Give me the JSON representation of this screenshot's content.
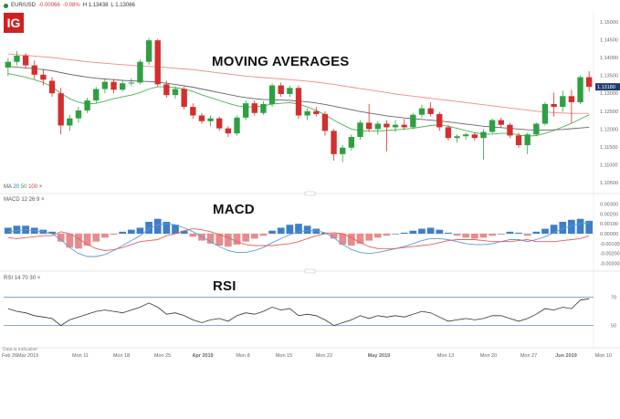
{
  "header": {
    "symbol": "EUR/USD",
    "change": "-0.00066",
    "change_pct": "-0.08%",
    "high": "H 1.13438",
    "low": "L 1.13066"
  },
  "logo_text": "IG",
  "titles": {
    "ma": "MOVING AVERAGES",
    "macd": "MACD",
    "rsi": "RSI"
  },
  "panels": {
    "ma": {
      "name": "MA",
      "p1": "20",
      "p2": "50",
      "p3": "100",
      "close": "×"
    },
    "macd": {
      "name": "MACD",
      "params": "12  26  9",
      "close": "×"
    },
    "rsi": {
      "name": "RSI",
      "params": "14  70  30",
      "close": "×"
    }
  },
  "last_price_tag": "1.13180",
  "footer_note": "Data is indicative",
  "colors": {
    "up": "#2ea043",
    "down": "#d32f2f",
    "ma20": "#4caf50",
    "ma50": "#666666",
    "ma100": "#ef8a8a",
    "macd_pos": "#3d7fc7",
    "macd_neg": "#e88b8b",
    "macd_line": "#5b9bd5",
    "signal_line": "#e06060",
    "rsi_line": "#333333",
    "band": "#4a78c2"
  },
  "chart_data": [
    {
      "type": "candlestick",
      "title": "MOVING AVERAGES",
      "yticks": [
        "1.15000",
        "1.14500",
        "1.14000",
        "1.13500",
        "1.13000",
        "1.12500",
        "1.12000",
        "1.11500",
        "1.11000",
        "1.10500"
      ],
      "ylim": [
        1.1025,
        1.1525
      ],
      "xticks": [
        "Feb 26",
        "Mar 2019",
        "Mon 11",
        "Mon 18",
        "Mon 25",
        "Apr 2019",
        "Mon 8",
        "Mon 15",
        "Mon 22",
        "May 2019",
        "Mon 13",
        "Mon 20",
        "Mon 27",
        "Jun 2019",
        "Mon 10"
      ],
      "candles": [
        [
          1.1372,
          1.1398,
          1.1348,
          1.1388
        ],
        [
          1.1388,
          1.1418,
          1.1378,
          1.1405
        ],
        [
          1.1405,
          1.1412,
          1.1372,
          1.1378
        ],
        [
          1.1378,
          1.1392,
          1.134,
          1.1352
        ],
        [
          1.1352,
          1.1368,
          1.1322,
          1.1338
        ],
        [
          1.1335,
          1.1345,
          1.129,
          1.13
        ],
        [
          1.13,
          1.1315,
          1.1185,
          1.121
        ],
        [
          1.121,
          1.124,
          1.1195,
          1.123
        ],
        [
          1.123,
          1.1262,
          1.1218,
          1.1252
        ],
        [
          1.1252,
          1.1288,
          1.1245,
          1.128
        ],
        [
          1.128,
          1.1318,
          1.1272,
          1.1312
        ],
        [
          1.1312,
          1.1342,
          1.13,
          1.1332
        ],
        [
          1.1332,
          1.134,
          1.13,
          1.131
        ],
        [
          1.131,
          1.1338,
          1.1305,
          1.1328
        ],
        [
          1.1328,
          1.1342,
          1.132,
          1.133
        ],
        [
          1.133,
          1.1395,
          1.1325,
          1.1388
        ],
        [
          1.1388,
          1.1455,
          1.138,
          1.1448
        ],
        [
          1.1448,
          1.1452,
          1.1318,
          1.1325
        ],
        [
          1.1325,
          1.1335,
          1.1288,
          1.1295
        ],
        [
          1.1295,
          1.132,
          1.1285,
          1.1312
        ],
        [
          1.1312,
          1.1318,
          1.1255,
          1.1262
        ],
        [
          1.1262,
          1.1272,
          1.1228,
          1.1238
        ],
        [
          1.1238,
          1.1245,
          1.1215,
          1.1222
        ],
        [
          1.1222,
          1.1238,
          1.1208,
          1.123
        ],
        [
          1.123,
          1.1235,
          1.1195,
          1.1202
        ],
        [
          1.1202,
          1.1208,
          1.1178,
          1.1188
        ],
        [
          1.1188,
          1.1238,
          1.1182,
          1.1232
        ],
        [
          1.1232,
          1.128,
          1.1225,
          1.1272
        ],
        [
          1.1272,
          1.128,
          1.1238,
          1.1245
        ],
        [
          1.1245,
          1.1278,
          1.124,
          1.127
        ],
        [
          1.127,
          1.1328,
          1.1262,
          1.1322
        ],
        [
          1.1322,
          1.133,
          1.129,
          1.1298
        ],
        [
          1.1298,
          1.1322,
          1.129,
          1.1315
        ],
        [
          1.1315,
          1.1322,
          1.1228,
          1.1238
        ],
        [
          1.1238,
          1.1258,
          1.1225,
          1.125
        ],
        [
          1.125,
          1.1262,
          1.1235,
          1.1242
        ],
        [
          1.1242,
          1.125,
          1.1182,
          1.1195
        ],
        [
          1.1195,
          1.12,
          1.1112,
          1.113
        ],
        [
          1.113,
          1.1155,
          1.1108,
          1.1148
        ],
        [
          1.1148,
          1.1185,
          1.114,
          1.1178
        ],
        [
          1.1178,
          1.1225,
          1.117,
          1.1218
        ],
        [
          1.1218,
          1.127,
          1.1192,
          1.12
        ],
        [
          1.12,
          1.1222,
          1.1185,
          1.1215
        ],
        [
          1.1215,
          1.1225,
          1.1138,
          1.1205
        ],
        [
          1.1205,
          1.1225,
          1.1192,
          1.1212
        ],
        [
          1.1212,
          1.1228,
          1.1198,
          1.1205
        ],
        [
          1.1205,
          1.1245,
          1.12,
          1.124
        ],
        [
          1.124,
          1.1268,
          1.1232,
          1.1258
        ],
        [
          1.1258,
          1.1275,
          1.1235,
          1.1242
        ],
        [
          1.1242,
          1.1248,
          1.1195,
          1.1205
        ],
        [
          1.1205,
          1.1212,
          1.1168,
          1.1175
        ],
        [
          1.1175,
          1.1185,
          1.1162,
          1.118
        ],
        [
          1.118,
          1.119,
          1.117,
          1.1185
        ],
        [
          1.1185,
          1.119,
          1.1168,
          1.1175
        ],
        [
          1.1175,
          1.12,
          1.1115,
          1.1192
        ],
        [
          1.1192,
          1.123,
          1.1188,
          1.1225
        ],
        [
          1.1225,
          1.1232,
          1.1205,
          1.1212
        ],
        [
          1.1212,
          1.1218,
          1.1175,
          1.1182
        ],
        [
          1.1182,
          1.119,
          1.1148,
          1.1155
        ],
        [
          1.1155,
          1.119,
          1.113,
          1.1185
        ],
        [
          1.1185,
          1.1218,
          1.118,
          1.1215
        ],
        [
          1.1215,
          1.1275,
          1.121,
          1.127
        ],
        [
          1.127,
          1.1302,
          1.1235,
          1.1262
        ],
        [
          1.1262,
          1.1308,
          1.1248,
          1.1292
        ],
        [
          1.1292,
          1.131,
          1.1218,
          1.1275
        ],
        [
          1.1275,
          1.135,
          1.127,
          1.1345
        ],
        [
          1.1345,
          1.1362,
          1.1305,
          1.1318
        ]
      ],
      "ma": [
        {
          "name": "20",
          "color_key": "ma20",
          "values": [
            1.1355,
            1.135,
            1.1345,
            1.1338,
            1.133,
            1.1318,
            1.13,
            1.1285,
            1.1275,
            1.127,
            1.1272,
            1.1278,
            1.1285,
            1.129,
            1.1295,
            1.1302,
            1.1312,
            1.1318,
            1.1318,
            1.1316,
            1.1312,
            1.1305,
            1.1296,
            1.1288,
            1.128,
            1.1272,
            1.1265,
            1.1262,
            1.1262,
            1.1265,
            1.127,
            1.1272,
            1.1274,
            1.127,
            1.1262,
            1.1252,
            1.124,
            1.1225,
            1.1212,
            1.12,
            1.1196,
            1.1194,
            1.1195,
            1.1196,
            1.1198,
            1.12,
            1.1202,
            1.1206,
            1.121,
            1.1212,
            1.1208,
            1.1202,
            1.1196,
            1.119,
            1.1186,
            1.1186,
            1.1188,
            1.1188,
            1.1184,
            1.118,
            1.1182,
            1.1188,
            1.1196,
            1.1206,
            1.1216,
            1.1228,
            1.124
          ]
        },
        {
          "name": "50",
          "color_key": "ma50",
          "values": [
            1.1375,
            1.1373,
            1.1371,
            1.1369,
            1.1366,
            1.1363,
            1.1358,
            1.1353,
            1.1349,
            1.1345,
            1.1342,
            1.134,
            1.1338,
            1.1336,
            1.1335,
            1.1334,
            1.1333,
            1.1331,
            1.1328,
            1.1325,
            1.1321,
            1.1317,
            1.1312,
            1.1307,
            1.1302,
            1.1297,
            1.1292,
            1.1288,
            1.1285,
            1.1283,
            1.1282,
            1.1281,
            1.128,
            1.1278,
            1.1276,
            1.1273,
            1.1269,
            1.1264,
            1.1259,
            1.1254,
            1.1249,
            1.1245,
            1.1241,
            1.1237,
            1.1234,
            1.1231,
            1.1229,
            1.1227,
            1.1225,
            1.1223,
            1.122,
            1.1217,
            1.1214,
            1.1211,
            1.1208,
            1.1206,
            1.1204,
            1.1202,
            1.12,
            1.1198,
            1.1197,
            1.1197,
            1.1198,
            1.1199,
            1.1201,
            1.1203,
            1.1205
          ]
        },
        {
          "name": "100",
          "color_key": "ma100",
          "values": [
            1.141,
            1.1408,
            1.1406,
            1.1404,
            1.1402,
            1.14,
            1.1397,
            1.1394,
            1.1391,
            1.1388,
            1.1386,
            1.1384,
            1.1382,
            1.138,
            1.1378,
            1.1376,
            1.1375,
            1.1374,
            1.1372,
            1.137,
            1.1368,
            1.1366,
            1.1363,
            1.136,
            1.1357,
            1.1354,
            1.1351,
            1.1348,
            1.1346,
            1.1344,
            1.1342,
            1.134,
            1.1338,
            1.1336,
            1.1334,
            1.1331,
            1.1328,
            1.1325,
            1.1321,
            1.1317,
            1.1313,
            1.131,
            1.1306,
            1.1302,
            1.1298,
            1.1295,
            1.1292,
            1.1289,
            1.1286,
            1.1283,
            1.128,
            1.1277,
            1.1274,
            1.1271,
            1.1268,
            1.1265,
            1.1262,
            1.1259,
            1.1256,
            1.1253,
            1.125,
            1.1248,
            1.1246,
            1.1245,
            1.1244,
            1.1244,
            1.1244
          ]
        }
      ]
    },
    {
      "type": "bar",
      "title": "MACD",
      "yticks": [
        "0.00300",
        "0.00200",
        "0.00100",
        "0.00000",
        "-0.00100",
        "-0.00200",
        "-0.00300"
      ],
      "ylim": [
        -0.0035,
        0.0035
      ],
      "histogram": [
        0.0006,
        0.0008,
        0.0008,
        0.0006,
        0.0004,
        0.0002,
        -0.0008,
        -0.0014,
        -0.0015,
        -0.0012,
        -0.0008,
        -0.0004,
        -0.0001,
        0.0002,
        0.0004,
        0.0006,
        0.0012,
        0.0015,
        0.0012,
        0.0009,
        0.0003,
        -0.0003,
        -0.0007,
        -0.001,
        -0.0012,
        -0.0013,
        -0.0011,
        -0.0008,
        -0.0005,
        -0.0002,
        0.0003,
        0.0006,
        0.0009,
        0.001,
        0.0008,
        0.0005,
        0.0001,
        -0.0005,
        -0.0011,
        -0.0012,
        -0.001,
        -0.0007,
        -0.0004,
        -0.0002,
        0.0,
        0.0001,
        0.0003,
        0.0005,
        0.0006,
        0.0004,
        0.0001,
        -0.0002,
        -0.0004,
        -0.0005,
        -0.0004,
        -0.0002,
        0.0,
        0.0002,
        0.0001,
        -0.0002,
        0.0002,
        0.0005,
        0.0009,
        0.0012,
        0.0014,
        0.0015,
        0.0013
      ],
      "macd": [
        0.0002,
        0.0003,
        0.0004,
        0.0003,
        0.0002,
        0.0,
        -0.0006,
        -0.0014,
        -0.002,
        -0.0023,
        -0.0023,
        -0.0021,
        -0.0017,
        -0.0012,
        -0.0007,
        -0.0002,
        0.0005,
        0.0009,
        0.001,
        0.0009,
        0.0006,
        0.0002,
        -0.0003,
        -0.0008,
        -0.0013,
        -0.0017,
        -0.0019,
        -0.0019,
        -0.0017,
        -0.0014,
        -0.0009,
        -0.0005,
        -0.0001,
        0.0002,
        0.0003,
        0.0003,
        0.0001,
        -0.0004,
        -0.0011,
        -0.0016,
        -0.0019,
        -0.002,
        -0.0019,
        -0.0017,
        -0.0015,
        -0.0013,
        -0.001,
        -0.0007,
        -0.0005,
        -0.0005,
        -0.0006,
        -0.0008,
        -0.001,
        -0.0011,
        -0.0011,
        -0.001,
        -0.0008,
        -0.0006,
        -0.0006,
        -0.0008,
        -0.0006,
        -0.0003,
        0.0001,
        0.0005,
        0.0008,
        0.001,
        0.0011
      ],
      "signal": [
        -0.0004,
        -0.0005,
        -0.0004,
        -0.0003,
        -0.0002,
        -0.0002,
        0.0002,
        0.0,
        -0.0005,
        -0.0011,
        -0.0015,
        -0.0017,
        -0.0016,
        -0.0014,
        -0.0011,
        -0.0008,
        -0.0007,
        -0.0006,
        -0.0002,
        0.0,
        0.0003,
        0.0005,
        0.0004,
        0.0002,
        -0.0001,
        -0.0004,
        -0.0008,
        -0.0011,
        -0.0012,
        -0.0012,
        -0.0012,
        -0.0011,
        -0.001,
        -0.0008,
        -0.0005,
        -0.0002,
        0.0,
        0.0001,
        0.0,
        -0.0004,
        -0.0009,
        -0.0013,
        -0.0015,
        -0.0015,
        -0.0015,
        -0.0014,
        -0.0013,
        -0.0012,
        -0.0011,
        -0.0009,
        -0.0007,
        -0.0006,
        -0.0006,
        -0.0006,
        -0.0007,
        -0.0008,
        -0.0008,
        -0.0008,
        -0.0007,
        -0.0006,
        -0.0008,
        -0.0008,
        -0.0008,
        -0.0007,
        -0.0006,
        -0.0005,
        -0.0002
      ]
    },
    {
      "type": "line",
      "title": "RSI",
      "yticks": [
        "70",
        "50"
      ],
      "ylim": [
        40,
        75
      ],
      "levels": [
        70,
        50
      ],
      "values": [
        62,
        60,
        59,
        57,
        56,
        55,
        50,
        54,
        56,
        58,
        60,
        61,
        60,
        59,
        61,
        63,
        66,
        63,
        58,
        59,
        57,
        54,
        52,
        54,
        55,
        53,
        57,
        59,
        58,
        60,
        63,
        61,
        62,
        57,
        58,
        57,
        54,
        50,
        52,
        54,
        57,
        55,
        57,
        56,
        57,
        56,
        58,
        60,
        59,
        56,
        53,
        54,
        55,
        54,
        55,
        57,
        57,
        55,
        53,
        55,
        58,
        62,
        61,
        63,
        62,
        68,
        69
      ]
    }
  ]
}
